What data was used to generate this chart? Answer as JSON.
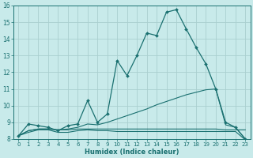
{
  "xlabel": "Humidex (Indice chaleur)",
  "xlim": [
    -0.5,
    23.5
  ],
  "ylim": [
    8,
    16
  ],
  "yticks": [
    8,
    9,
    10,
    11,
    12,
    13,
    14,
    15,
    16
  ],
  "xticks": [
    0,
    1,
    2,
    3,
    4,
    5,
    6,
    7,
    8,
    9,
    10,
    11,
    12,
    13,
    14,
    15,
    16,
    17,
    18,
    19,
    20,
    21,
    22,
    23
  ],
  "background_color": "#c8eaea",
  "grid_color": "#aacfcf",
  "line_color": "#1a7070",
  "curves": [
    {
      "x": [
        0,
        1,
        2,
        3,
        4,
        5,
        6,
        7,
        8,
        9,
        10,
        11,
        12,
        13,
        14,
        15,
        16,
        17,
        18,
        19,
        20,
        21,
        22,
        23
      ],
      "y": [
        8.2,
        8.9,
        8.8,
        8.7,
        8.5,
        8.8,
        8.9,
        10.3,
        9.0,
        9.5,
        12.7,
        11.8,
        13.0,
        14.35,
        14.2,
        15.6,
        15.75,
        14.6,
        13.5,
        12.5,
        11.0,
        9.0,
        8.7,
        8.0
      ],
      "marker": true
    },
    {
      "x": [
        0,
        1,
        2,
        3,
        4,
        5,
        6,
        7,
        8,
        9,
        10,
        11,
        12,
        13,
        14,
        15,
        16,
        17,
        18,
        19,
        20,
        21,
        22,
        23
      ],
      "y": [
        8.2,
        8.5,
        8.6,
        8.6,
        8.55,
        8.6,
        8.7,
        8.9,
        8.85,
        9.0,
        9.2,
        9.4,
        9.6,
        9.8,
        10.05,
        10.25,
        10.45,
        10.65,
        10.8,
        10.95,
        11.0,
        8.85,
        8.7,
        8.0
      ],
      "marker": false
    },
    {
      "x": [
        0,
        1,
        2,
        3,
        4,
        5,
        6,
        7,
        8,
        9,
        10,
        11,
        12,
        13,
        14,
        15,
        16,
        17,
        18,
        19,
        20,
        21,
        22,
        23
      ],
      "y": [
        8.2,
        8.5,
        8.6,
        8.6,
        8.55,
        8.55,
        8.6,
        8.6,
        8.6,
        8.6,
        8.6,
        8.6,
        8.6,
        8.6,
        8.6,
        8.6,
        8.6,
        8.6,
        8.6,
        8.6,
        8.6,
        8.55,
        8.55,
        8.55
      ],
      "marker": false
    },
    {
      "x": [
        0,
        1,
        2,
        3,
        4,
        5,
        6,
        7,
        8,
        9,
        10,
        11,
        12,
        13,
        14,
        15,
        16,
        17,
        18,
        19,
        20,
        21,
        22,
        23
      ],
      "y": [
        8.2,
        8.4,
        8.55,
        8.55,
        8.4,
        8.4,
        8.5,
        8.55,
        8.5,
        8.5,
        8.45,
        8.45,
        8.45,
        8.45,
        8.45,
        8.45,
        8.45,
        8.45,
        8.45,
        8.45,
        8.45,
        8.45,
        8.45,
        7.95
      ],
      "marker": false
    }
  ]
}
